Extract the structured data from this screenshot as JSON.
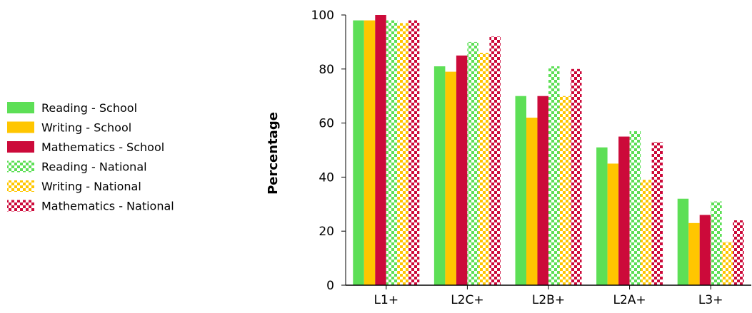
{
  "chart_data": {
    "type": "bar",
    "title": "",
    "xlabel": "",
    "ylabel": "Percentage",
    "ylim": [
      0,
      100
    ],
    "yticks": [
      0,
      20,
      40,
      60,
      80,
      100
    ],
    "categories": [
      "L1+",
      "L2C+",
      "L2B+",
      "L2A+",
      "L3+"
    ],
    "legend_position": "left",
    "grid": false,
    "series": [
      {
        "name": "Reading - School",
        "color": "#5ddf56",
        "pattern": "solid",
        "values": [
          98,
          81,
          70,
          51,
          32
        ]
      },
      {
        "name": "Writing - School",
        "color": "#ffc600",
        "pattern": "solid",
        "values": [
          98,
          79,
          62,
          45,
          23
        ]
      },
      {
        "name": "Mathematics - School",
        "color": "#cc0a3a",
        "pattern": "solid",
        "values": [
          100,
          85,
          70,
          55,
          26
        ]
      },
      {
        "name": "Reading - National",
        "color": "#5ddf56",
        "pattern": "checker",
        "values": [
          98,
          90,
          81,
          57,
          31
        ]
      },
      {
        "name": "Writing - National",
        "color": "#ffc600",
        "pattern": "checker",
        "values": [
          97,
          86,
          70,
          39,
          16
        ]
      },
      {
        "name": "Mathematics - National",
        "color": "#cc0a3a",
        "pattern": "checker",
        "values": [
          98,
          92,
          80,
          53,
          24
        ]
      }
    ]
  }
}
